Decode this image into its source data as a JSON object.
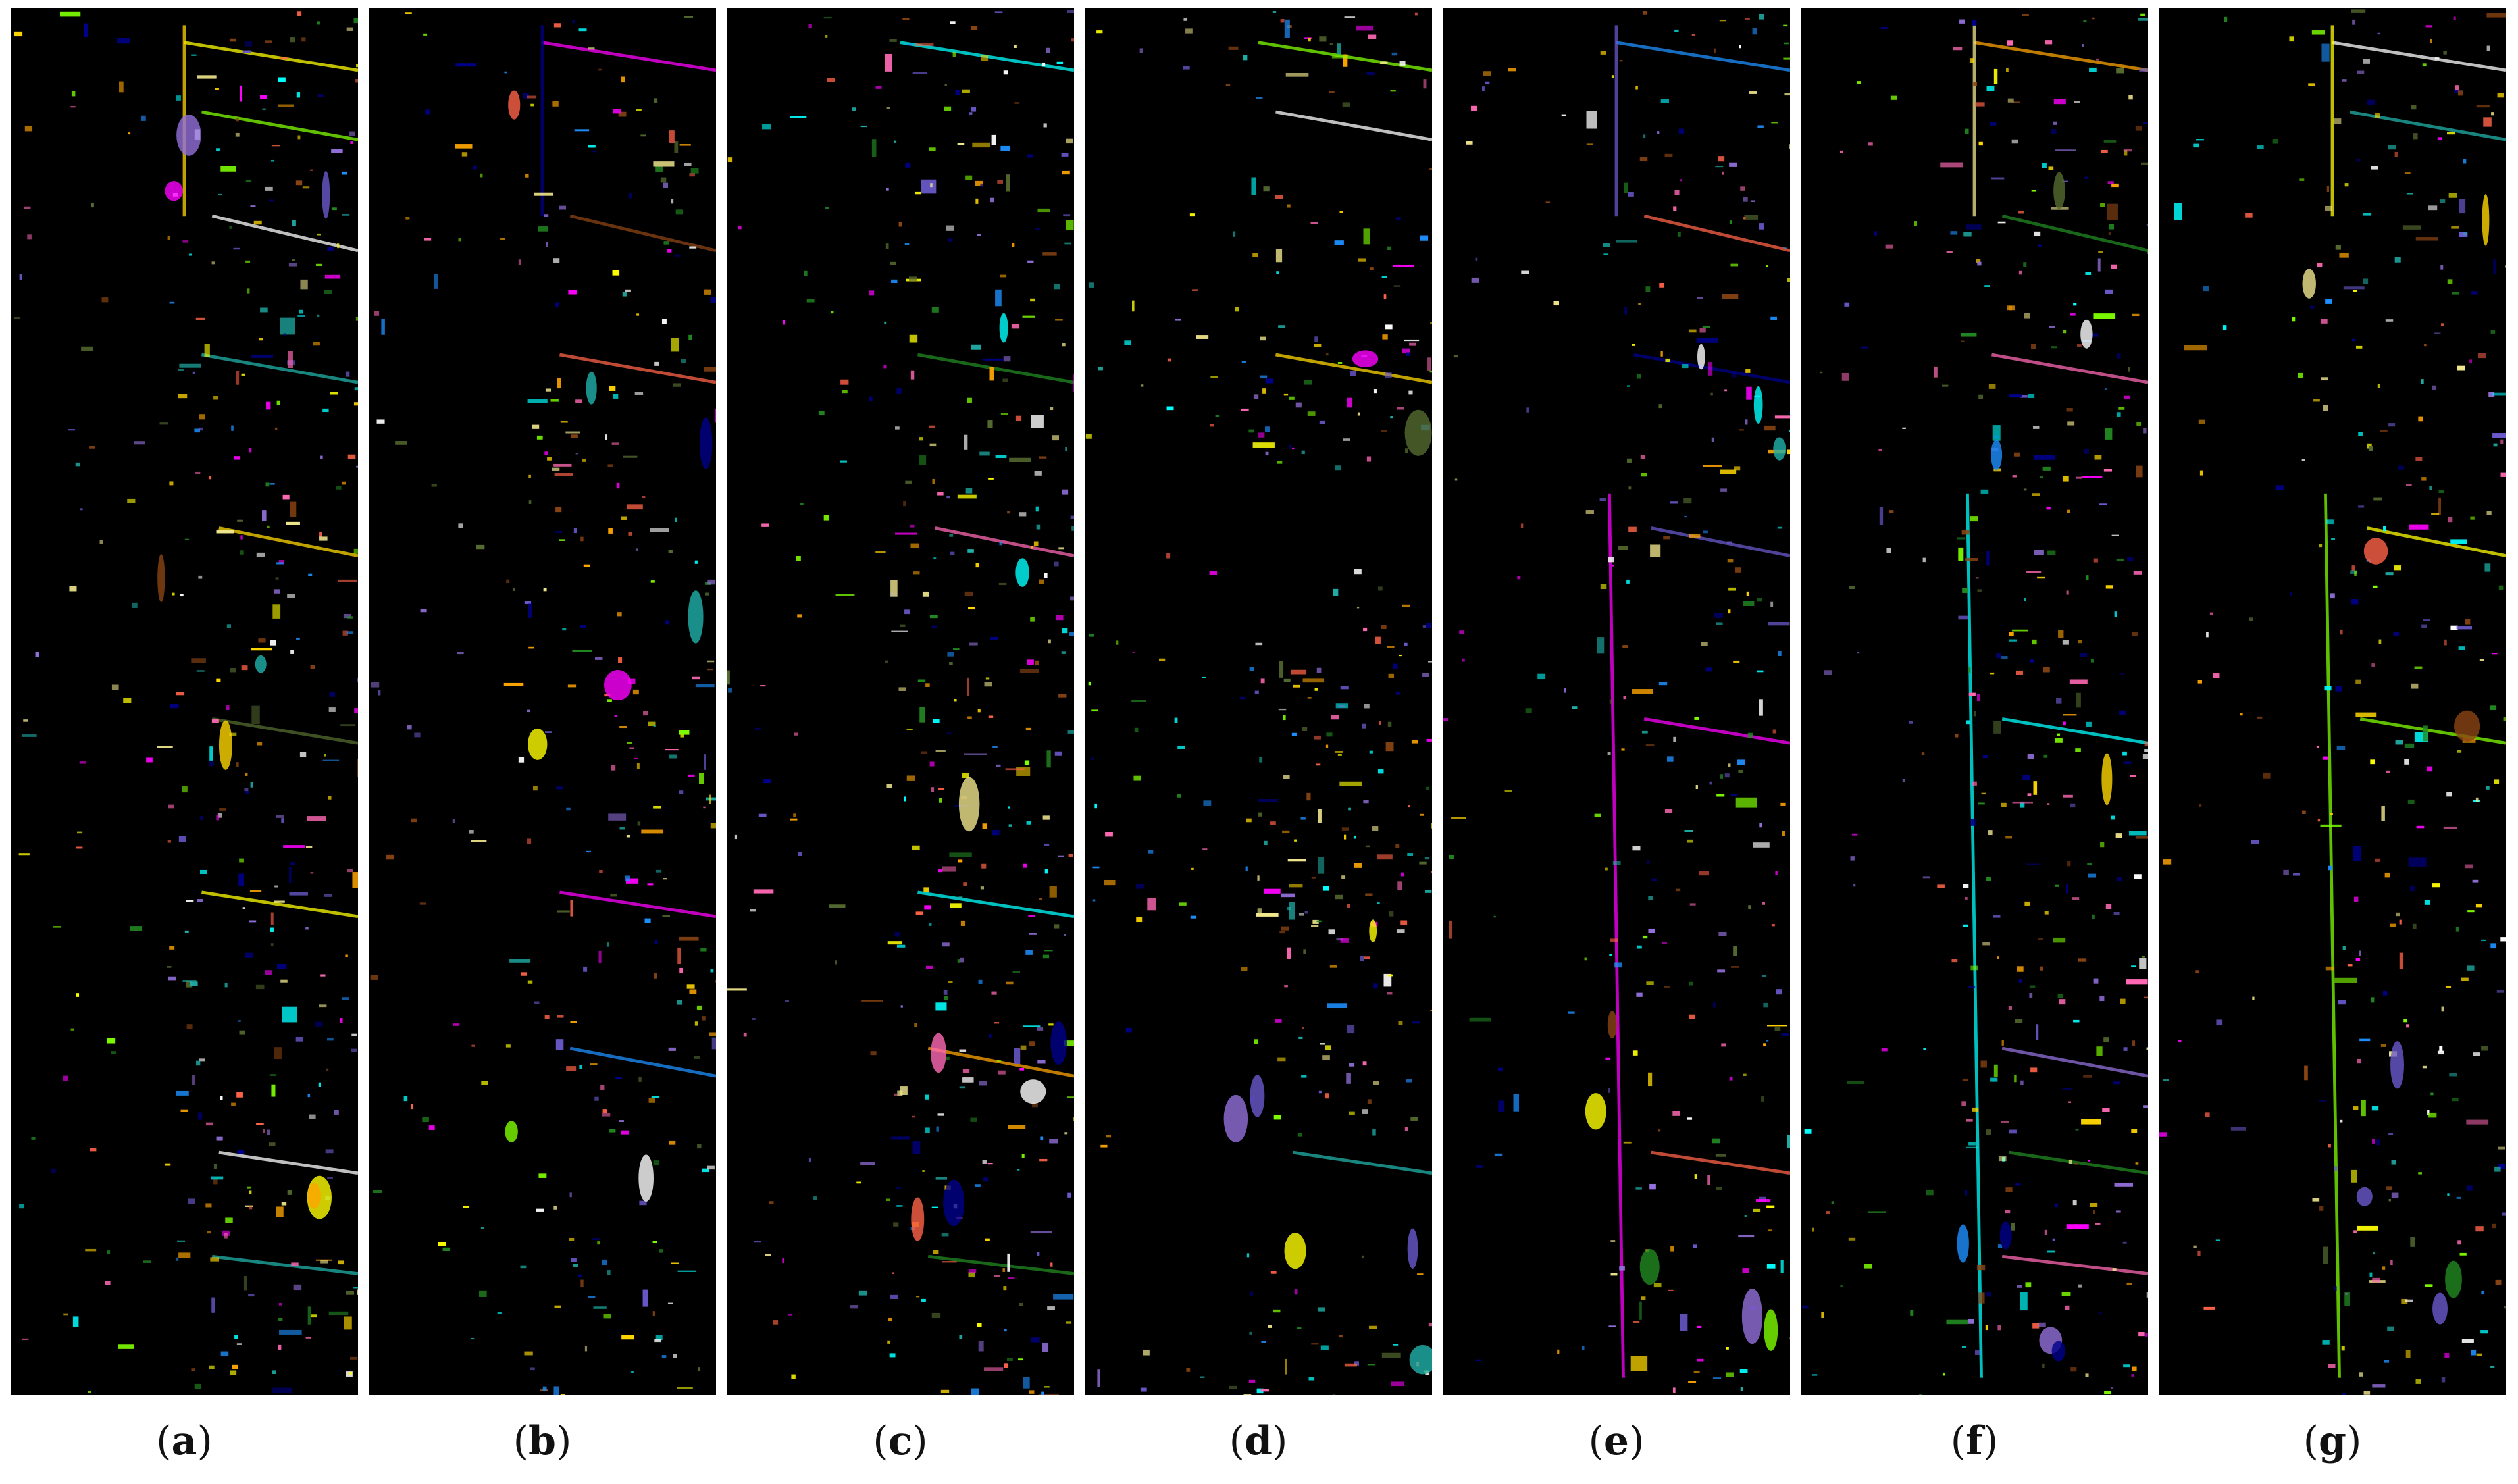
{
  "figure": {
    "background_color": "#ffffff",
    "panel_background_color": "#000000",
    "panels": [
      {
        "label_open": "(",
        "label_letter": "a",
        "label_close": ")"
      },
      {
        "label_open": "(",
        "label_letter": "b",
        "label_close": ")"
      },
      {
        "label_open": "(",
        "label_letter": "c",
        "label_close": ")"
      },
      {
        "label_open": "(",
        "label_letter": "d",
        "label_close": ")"
      },
      {
        "label_open": "(",
        "label_letter": "e",
        "label_close": ")"
      },
      {
        "label_open": "(",
        "label_letter": "f",
        "label_close": ")"
      },
      {
        "label_open": "(",
        "label_letter": "g",
        "label_close": ")"
      }
    ],
    "class_colors": [
      "#ffff00",
      "#ff00ff",
      "#00ffff",
      "#7fff00",
      "#1e90ff",
      "#ffa500",
      "#ffffff",
      "#8b4513",
      "#9370db",
      "#20b2aa",
      "#ff6347",
      "#228b22",
      "#ffd700",
      "#00008b",
      "#ff69b4",
      "#556b2f",
      "#6a5acd",
      "#f0e68c"
    ]
  }
}
